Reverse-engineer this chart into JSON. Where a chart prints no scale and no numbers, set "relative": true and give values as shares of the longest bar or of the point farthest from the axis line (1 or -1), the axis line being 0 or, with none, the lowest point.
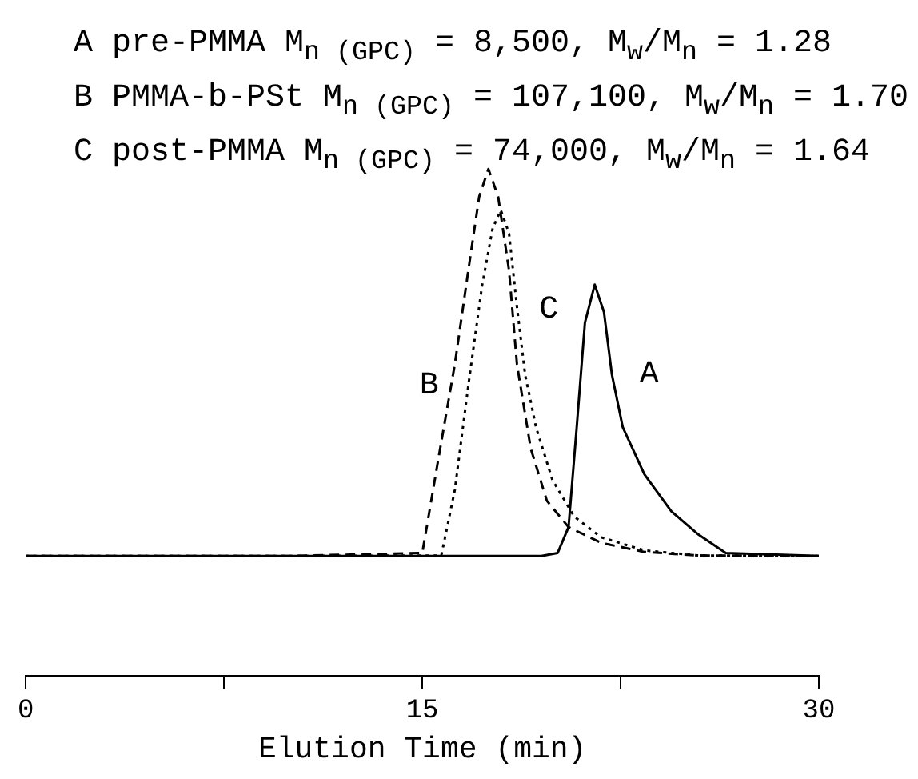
{
  "chart_data": {
    "type": "line",
    "relative": true,
    "xlabel": "Elution Time (min)",
    "xlim": [
      0,
      30
    ],
    "xticks": [
      0,
      {
        "value": 7.5,
        "label": null
      },
      15,
      {
        "value": 22.5,
        "label": null
      },
      30
    ],
    "grid": false,
    "legend": false,
    "marker": "none",
    "tick_labels": "x",
    "annotations": [
      "A pre-PMMA M$_{n (GPC)}$ = 8,500, M$_{w}$/M$_{n}$ = 1.28",
      "B PMMA-b-PSt M$_{n (GPC)}$ = 107,100, M$_{w}$/M$_{n}$ = 1.70",
      "C post-PMMA M$_{n (GPC)}$ = 74,000, M$_{w}$/M$_{n}$ = 1.64"
    ],
    "series": [
      {
        "name": "A",
        "color": "#000000",
        "line_style": "solid",
        "x": [
          0,
          10,
          19.5,
          20.12,
          20.53,
          20.84,
          21.15,
          21.52,
          21.87,
          22.17,
          22.58,
          23.4,
          24.42,
          25.45,
          26.48,
          30
        ],
        "values": [
          0.237,
          0.237,
          0.237,
          0.243,
          0.294,
          0.491,
          0.697,
          0.772,
          0.718,
          0.595,
          0.491,
          0.398,
          0.325,
          0.279,
          0.243,
          0.237
        ]
      },
      {
        "name": "B",
        "color": "#000000",
        "line_style": "dashed",
        "x": [
          0,
          10,
          15,
          15.61,
          16.23,
          16.74,
          17.15,
          17.5,
          17.87,
          18.28,
          18.58,
          19.1,
          19.71,
          20.53,
          21.76,
          23.4,
          25.45,
          30
        ],
        "values": [
          0.237,
          0.237,
          0.243,
          0.429,
          0.615,
          0.8,
          0.945,
          1,
          0.945,
          0.8,
          0.615,
          0.449,
          0.346,
          0.294,
          0.263,
          0.245,
          0.238,
          0.237
        ]
      },
      {
        "name": "C",
        "color": "#000000",
        "line_style": "dotted",
        "x": [
          0,
          10,
          15.72,
          16.23,
          16.74,
          17.26,
          17.66,
          17.97,
          18.28,
          18.58,
          18.89,
          19.3,
          19.92,
          20.74,
          21.76,
          23.4,
          25.45,
          30
        ],
        "values": [
          0.237,
          0.237,
          0.238,
          0.367,
          0.573,
          0.77,
          0.883,
          0.919,
          0.873,
          0.728,
          0.594,
          0.491,
          0.387,
          0.315,
          0.274,
          0.248,
          0.238,
          0.237
        ]
      }
    ]
  }
}
